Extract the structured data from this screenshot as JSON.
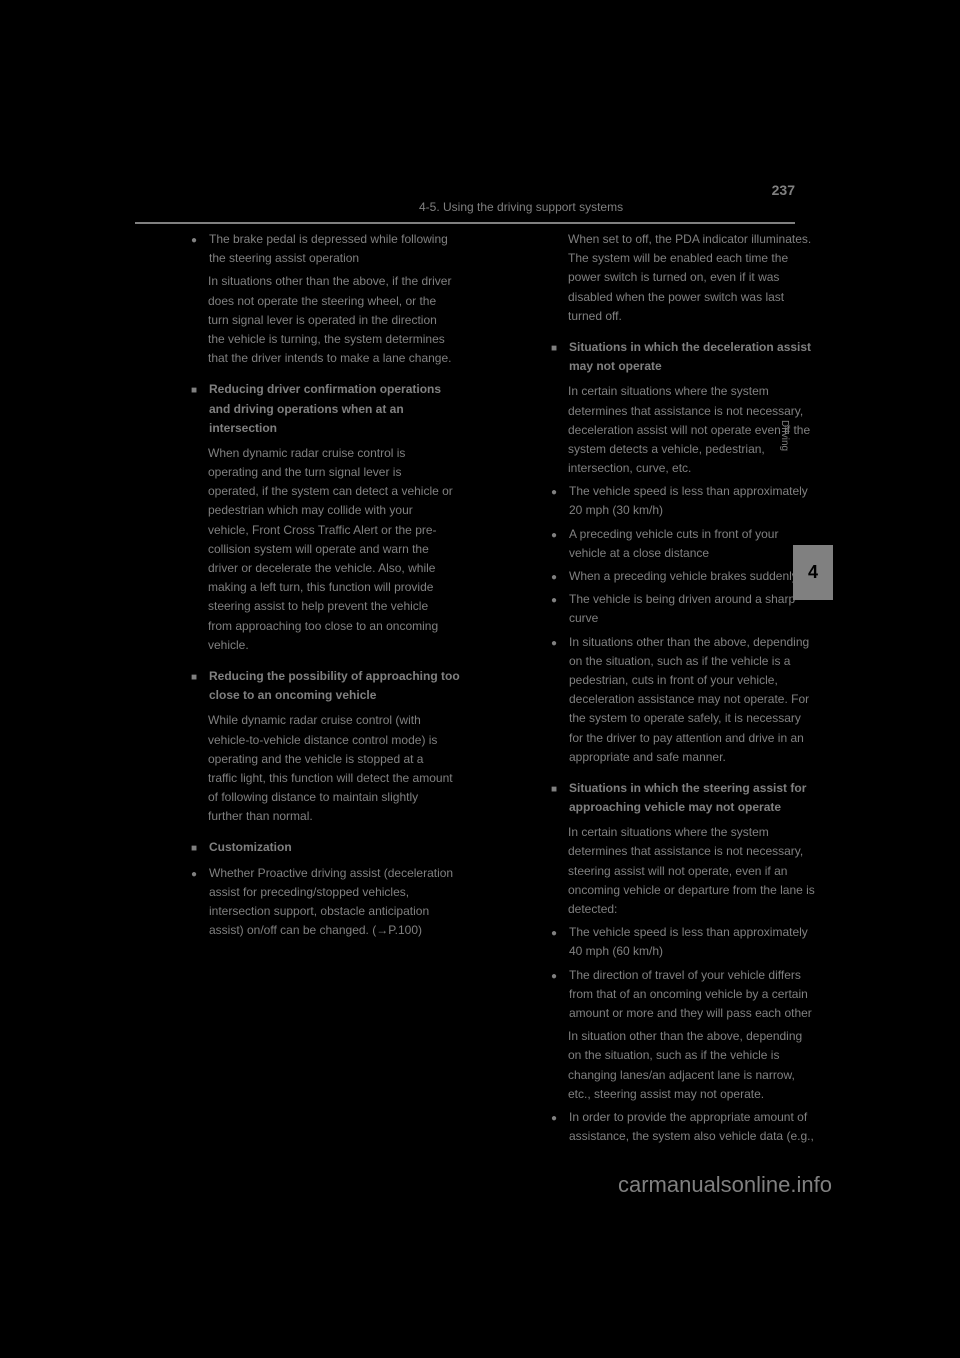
{
  "pageNumber": "237",
  "sectionTitle": "4-5. Using the driving support systems",
  "chapterNumber": "4",
  "sideLabel": "Driving",
  "watermark": "carmanualsonline.info",
  "leftColumn": {
    "items": [
      {
        "type": "bullet",
        "text": "The brake pedal is depressed while following the steering assist operation"
      },
      {
        "type": "body",
        "text": "In situations other than the above, if the driver does not operate the steering wheel, or the turn signal lever is operated in the direction the vehicle is turning, the system determines that the driver intends to make a lane change."
      },
      {
        "type": "square",
        "text": "Reducing driver confirmation operations and driving operations when at an intersection"
      },
      {
        "type": "body",
        "text": "When dynamic radar cruise control is operating and the turn signal lever is operated, if the system can detect a vehicle or pedestrian which may collide with your vehicle, Front Cross Traffic Alert or the pre-collision system will operate and warn the driver or decelerate the vehicle. Also, while making a left turn, this function will provide steering assist to help prevent the vehicle from approaching too close to an oncoming vehicle."
      },
      {
        "type": "square",
        "text": "Reducing the possibility of approaching too close to an oncoming vehicle"
      },
      {
        "type": "body",
        "text": "While dynamic radar cruise control (with vehicle-to-vehicle distance control mode) is operating and the vehicle is stopped at a traffic light, this function will detect the amount of following distance to maintain slightly further than normal."
      },
      {
        "type": "square",
        "text": "Customization"
      },
      {
        "type": "bullet",
        "text": "Whether Proactive driving assist (deceleration assist for preceding/stopped vehicles, intersection support, obstacle anticipation assist) on/off can be changed. (→P.100)"
      }
    ]
  },
  "rightColumn": {
    "items": [
      {
        "type": "body",
        "text": "When set to off, the PDA indicator illuminates. The system will be enabled each time the power switch is turned on, even if it was disabled when the power switch was last turned off."
      },
      {
        "type": "square",
        "text": "Situations in which the deceleration assist may not operate"
      },
      {
        "type": "body",
        "text": "In certain situations where the system determines that assistance is not necessary, deceleration assist will not operate even if the system detects a vehicle, pedestrian, intersection, curve, etc."
      },
      {
        "type": "bullet",
        "text": "The vehicle speed is less than approximately 20 mph (30 km/h)"
      },
      {
        "type": "bullet",
        "text": "A preceding vehicle cuts in front of your vehicle at a close distance"
      },
      {
        "type": "bullet",
        "text": "When a preceding vehicle brakes suddenly"
      },
      {
        "type": "bullet",
        "text": "The vehicle is being driven around a sharp curve"
      },
      {
        "type": "bullet",
        "text": "In situations other than the above, depending on the situation, such as if the vehicle is a pedestrian, cuts in front of your vehicle, deceleration assistance may not operate. For the system to operate safely, it is necessary for the driver to pay attention and drive in an appropriate and safe manner."
      },
      {
        "type": "square",
        "text": "Situations in which the steering assist for approaching vehicle may not operate"
      },
      {
        "type": "body",
        "text": "In certain situations where the system determines that assistance is not necessary, steering assist will not operate, even if an oncoming vehicle or departure from the lane is detected:"
      },
      {
        "type": "bullet",
        "text": "The vehicle speed is less than approximately 40 mph (60 km/h)"
      },
      {
        "type": "bullet",
        "text": "The direction of travel of your vehicle differs from that of an oncoming vehicle by a certain amount or more and they will pass each other"
      },
      {
        "type": "body",
        "text": "In situation other than the above, depending on the situation, such as if the vehicle is changing lanes/an adjacent lane is narrow, etc., steering assist may not operate."
      },
      {
        "type": "bullet",
        "text": "In order to provide the appropriate amount of assistance, the system also vehicle data (e.g.,"
      }
    ]
  }
}
